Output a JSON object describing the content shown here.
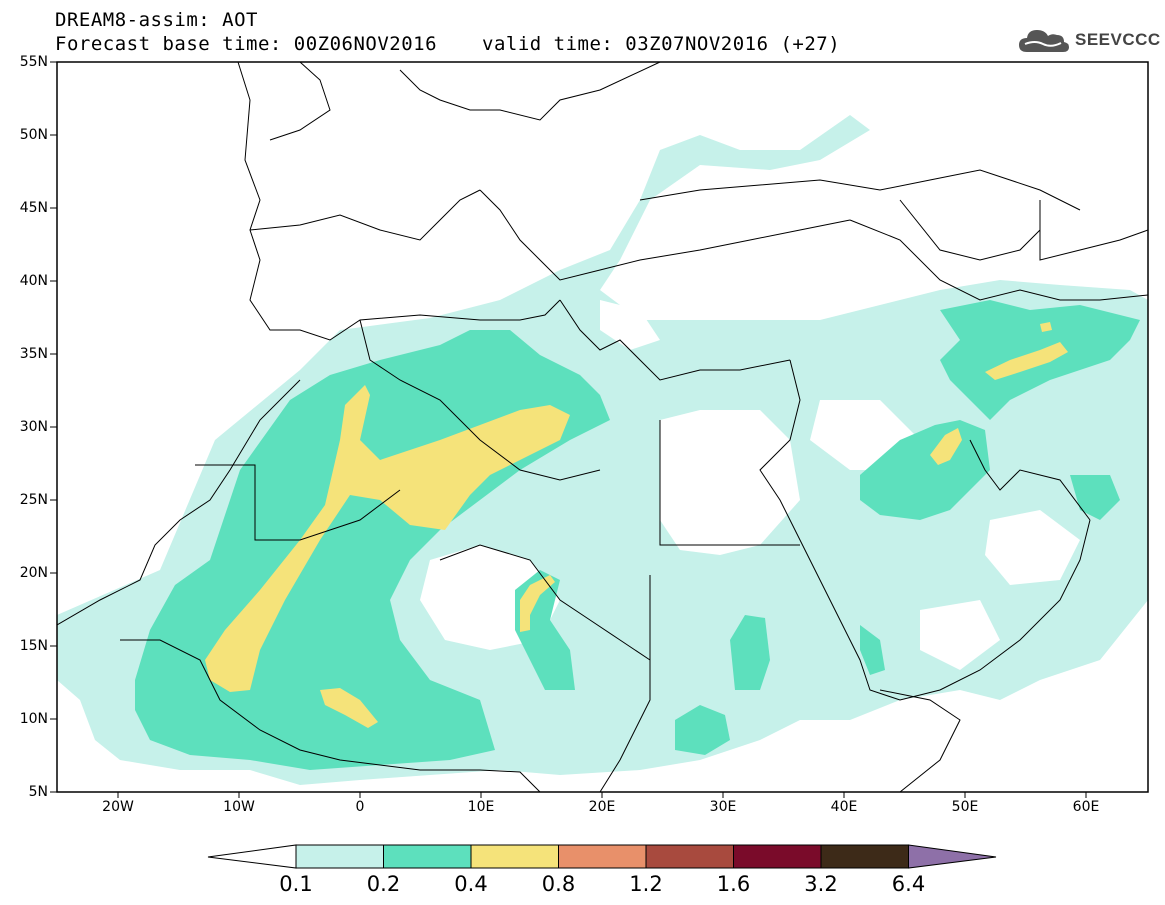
{
  "header": {
    "title": "DREAM8-assim: AOT",
    "base_time": "Forecast base time: 00Z06NOV2016",
    "valid_time": "valid time: 03Z07NOV2016 (+27)"
  },
  "logo": {
    "text": "SEEVCCC",
    "icon": "cloud-icon"
  },
  "map": {
    "lon_range": [
      -25,
      65
    ],
    "lat_range": [
      5,
      55
    ],
    "lat_ticks": [
      "55N",
      "50N",
      "45N",
      "40N",
      "35N",
      "30N",
      "25N",
      "20N",
      "15N",
      "10N",
      "5N"
    ],
    "lon_ticks": [
      "20W",
      "10W",
      "0",
      "10E",
      "20E",
      "30E",
      "40E",
      "50E",
      "60E"
    ],
    "field": "Aerosol optical thickness"
  },
  "colorbar": {
    "levels": [
      "0.1",
      "0.2",
      "0.4",
      "0.8",
      "1.2",
      "1.6",
      "3.2",
      "6.4"
    ],
    "colors": [
      "#ffffff",
      "#c6f1ea",
      "#5de0bd",
      "#f5e37a",
      "#e8906a",
      "#a84a3e",
      "#7a0b2a",
      "#3d2a18",
      "#8e70a8"
    ]
  }
}
